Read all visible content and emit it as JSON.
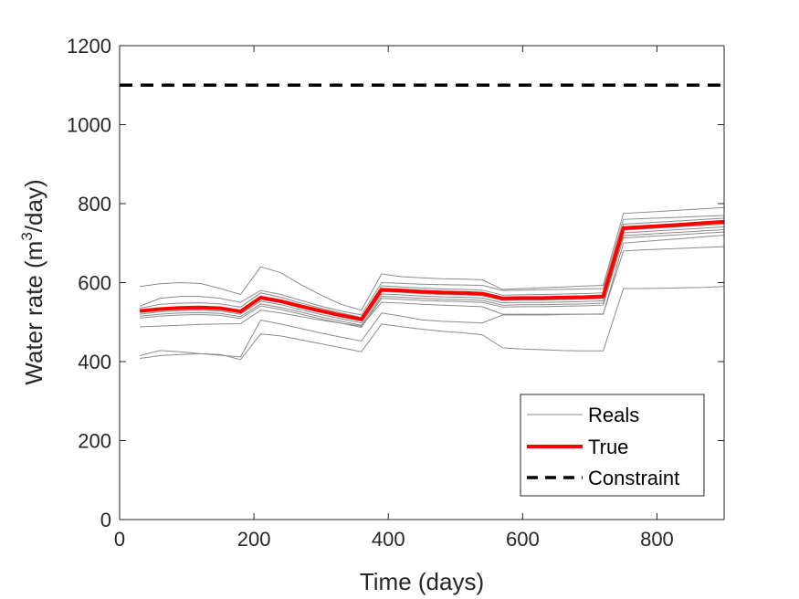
{
  "chart_data": {
    "type": "line",
    "title": "",
    "xlabel": "Time (days)",
    "ylabel_prefix": "Water rate (m",
    "ylabel_sup": "3",
    "ylabel_suffix": "/day)",
    "xlim": [
      0,
      900
    ],
    "ylim": [
      0,
      1200
    ],
    "xticks": [
      0,
      200,
      400,
      600,
      800
    ],
    "yticks": [
      0,
      200,
      400,
      600,
      800,
      1000,
      1200
    ],
    "grid": false,
    "legend_position": "bottom-right",
    "x": [
      30,
      60,
      90,
      120,
      150,
      180,
      210,
      240,
      270,
      300,
      330,
      360,
      390,
      420,
      450,
      480,
      510,
      540,
      570,
      600,
      630,
      660,
      690,
      720,
      750,
      780,
      810,
      840,
      870,
      900
    ],
    "series": [
      {
        "name": "True",
        "color": "#ff0000",
        "values": [
          528,
          533,
          536,
          537,
          535,
          527,
          562,
          553,
          540,
          528,
          517,
          507,
          582,
          580,
          577,
          575,
          574,
          572,
          560,
          561,
          561,
          562,
          563,
          565,
          738,
          741,
          744,
          747,
          751,
          754
        ]
      },
      {
        "name": "Constraint",
        "color": "#000000",
        "style": "dashed",
        "x": [
          0,
          900
        ],
        "values": [
          1100,
          1100
        ]
      }
    ],
    "reals": {
      "name": "Reals",
      "color": "#8c8c8c",
      "series": [
        [
          590,
          597,
          600,
          598,
          585,
          570,
          640,
          625,
          595,
          568,
          545,
          530,
          622,
          615,
          612,
          610,
          609,
          607,
          583,
          585,
          587,
          589,
          591,
          593,
          775,
          778,
          781,
          784,
          787,
          790
        ],
        [
          540,
          560,
          565,
          565,
          560,
          550,
          580,
          570,
          555,
          540,
          528,
          518,
          600,
          598,
          596,
          595,
          594,
          593,
          580,
          581,
          582,
          583,
          584,
          585,
          760,
          762,
          764,
          766,
          768,
          770
        ],
        [
          535,
          545,
          548,
          549,
          546,
          538,
          574,
          563,
          548,
          535,
          523,
          512,
          592,
          589,
          586,
          584,
          583,
          581,
          568,
          569,
          570,
          571,
          572,
          574,
          748,
          751,
          754,
          757,
          760,
          763
        ],
        [
          525,
          530,
          533,
          534,
          532,
          524,
          558,
          549,
          536,
          524,
          513,
          503,
          577,
          575,
          572,
          570,
          569,
          567,
          555,
          556,
          556,
          557,
          558,
          560,
          733,
          736,
          739,
          742,
          745,
          748
        ],
        [
          520,
          526,
          529,
          530,
          528,
          520,
          553,
          544,
          531,
          519,
          508,
          498,
          571,
          569,
          566,
          564,
          563,
          561,
          549,
          550,
          550,
          551,
          552,
          554,
          726,
          729,
          732,
          735,
          738,
          741
        ],
        [
          515,
          520,
          523,
          524,
          522,
          514,
          546,
          537,
          525,
          513,
          502,
          492,
          565,
          563,
          560,
          558,
          557,
          555,
          543,
          544,
          544,
          545,
          546,
          548,
          719,
          722,
          725,
          728,
          731,
          734
        ],
        [
          510,
          515,
          518,
          519,
          517,
          509,
          541,
          532,
          520,
          508,
          497,
          487,
          560,
          558,
          555,
          553,
          552,
          550,
          538,
          539,
          539,
          540,
          541,
          543,
          713,
          716,
          719,
          722,
          725,
          728
        ],
        [
          488,
          490,
          492,
          494,
          495,
          496,
          530,
          523,
          514,
          505,
          497,
          490,
          550,
          548,
          545,
          543,
          541,
          539,
          520,
          520,
          520,
          520,
          520,
          520,
          700,
          704,
          708,
          712,
          716,
          720
        ],
        [
          415,
          428,
          425,
          420,
          416,
          412,
          505,
          495,
          484,
          472,
          462,
          452,
          523,
          515,
          506,
          502,
          500,
          498,
          518,
          518,
          518,
          519,
          520,
          521,
          680,
          683,
          685,
          687,
          689,
          691
        ],
        [
          408,
          415,
          418,
          420,
          418,
          405,
          470,
          465,
          455,
          445,
          435,
          425,
          495,
          488,
          482,
          477,
          473,
          468,
          435,
          432,
          430,
          428,
          427,
          427,
          585,
          585,
          586,
          587,
          588,
          590
        ]
      ]
    },
    "legend": [
      {
        "label": "Reals"
      },
      {
        "label": "True"
      },
      {
        "label": "Constraint"
      }
    ]
  }
}
